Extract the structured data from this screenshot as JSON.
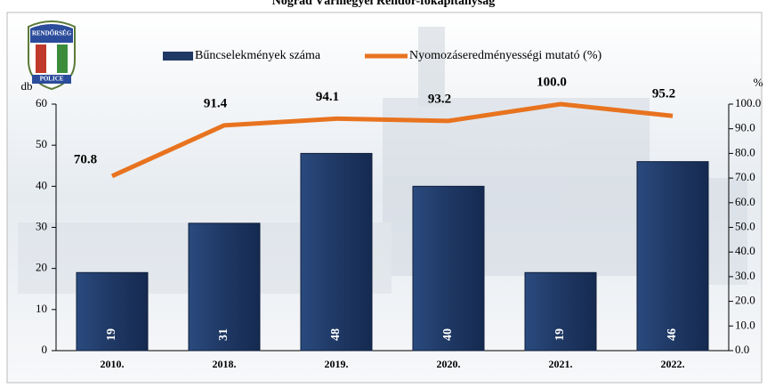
{
  "chart_data": {
    "type": "bar-line",
    "title": "Nógrád Vármegyei Rendőr-főkapitányság",
    "logo_texts": [
      "RENDŐRSÉG",
      "POLICE"
    ],
    "y_label": "db",
    "y2_label": "%",
    "categories": [
      "2010.",
      "2018.",
      "2019.",
      "2020.",
      "2021.",
      "2022."
    ],
    "series": [
      {
        "name": "Bűncselekmények száma",
        "type": "bar",
        "color": "#1f3864",
        "values": [
          19,
          31,
          48,
          40,
          19,
          46
        ]
      },
      {
        "name": "Nyomozáseredményességi mutató (%)",
        "type": "line",
        "axis": "y2",
        "color": "#e8731f",
        "values": [
          70.8,
          91.4,
          94.1,
          93.2,
          100.0,
          95.2
        ],
        "value_labels": [
          "70.8",
          "91.4",
          "94.1",
          "93.2",
          "100.0",
          "95.2"
        ]
      }
    ],
    "ylim": [
      0,
      60
    ],
    "yticks": [
      0,
      10,
      20,
      30,
      40,
      50,
      60
    ],
    "y2lim": [
      0,
      100
    ],
    "y2ticks": [
      {
        "value": 0,
        "label": "0.0"
      },
      {
        "value": 10,
        "label": "10.0"
      },
      {
        "value": 20,
        "label": "20.0"
      },
      {
        "value": 30,
        "label": "30.0"
      },
      {
        "value": 40,
        "label": "40.0"
      },
      {
        "value": 50,
        "label": "50.0"
      },
      {
        "value": 60,
        "label": "60.0"
      },
      {
        "value": 70,
        "label": "70.0"
      },
      {
        "value": 80,
        "label": "80.0"
      },
      {
        "value": 90,
        "label": "90.0"
      },
      {
        "value": 100,
        "label": "100.0"
      }
    ],
    "legend": "top"
  }
}
